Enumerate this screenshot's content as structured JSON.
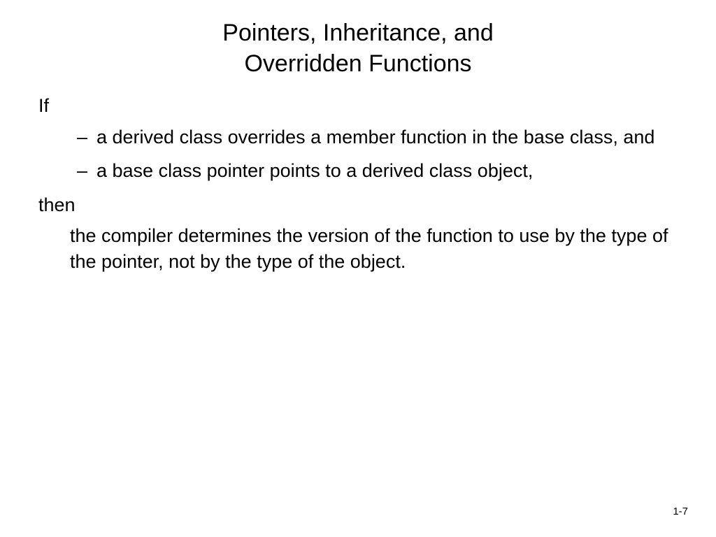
{
  "slide": {
    "title_line1": "Pointers, Inheritance, and",
    "title_line2": "Overridden Functions",
    "if_label": "If",
    "bullets": [
      "a derived class overrides a member function in the base class, and",
      "a base class pointer points to a derived class object,"
    ],
    "then_label": "then",
    "conclusion": "the compiler determines the version of the function to use by the type of the pointer, not by the type of the object.",
    "page_number": "1-7"
  },
  "styling": {
    "background_color": "#ffffff",
    "text_color": "#000000",
    "title_fontsize": 34,
    "body_fontsize": 27,
    "pagenum_fontsize": 15,
    "font_family": "Verdana, Geneva, sans-serif"
  }
}
